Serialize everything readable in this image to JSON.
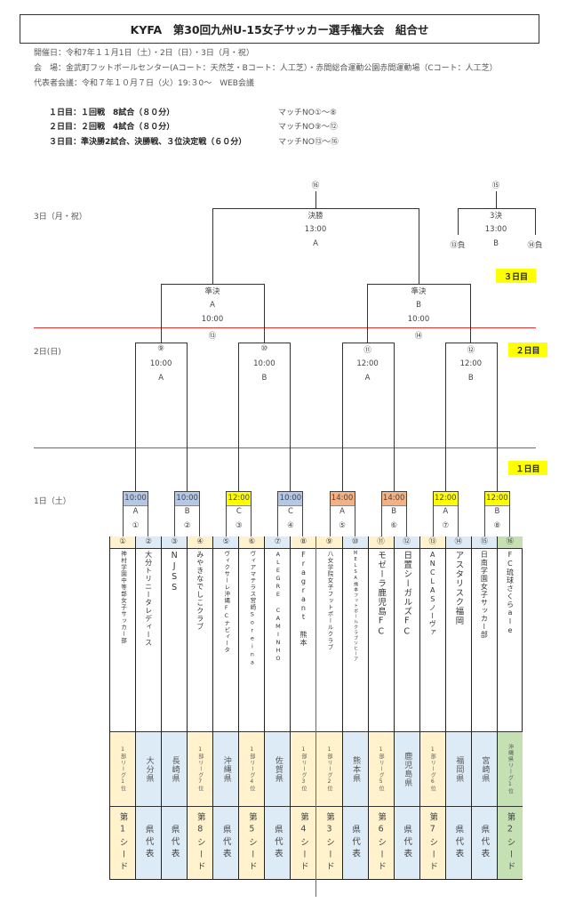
{
  "title": "KYFA　第30回九州U-15女子サッカー選手権大会　組合せ",
  "info": [
    "開催日：令和7年１１月1日（土）・2日（日）・3日（月・祝）",
    "会　場：金武町フットボールセンター(Aコート：天然芝・Bコート：人工芝）・赤間総合運動公園赤間運動場（Cコート：人工芝）",
    "代表者会議：令和７年１０月７日（火）19:３0～　WEB会議"
  ],
  "schedule": [
    {
      "day": "１日目：１回戦　8試合（８０分）",
      "matches": "マッチNO①～⑧"
    },
    {
      "day": "２日目：２回戦　4試合（８０分）",
      "matches": "マッチNO⑨～⑫"
    },
    {
      "day": "３日目：準決勝2試合、決勝戦、３位決定戦（６０分）",
      "matches": "マッチNO⑬～⑯"
    }
  ],
  "day_labels": {
    "day3": "3日（月・祝）",
    "day2": "2日(日)",
    "day1": "1日（土）"
  },
  "day_tags": {
    "day3": "３日目",
    "day2": "２日目",
    "day1": "１日目"
  },
  "colors": {
    "blue": "#b4c7e7",
    "yellow": "#ffff00",
    "orange": "#f4b183",
    "cell_orange": "#fff2cc",
    "cell_blue": "#ddebf7",
    "cell_green": "#c5e0b3",
    "red_line": "#e33333"
  },
  "final": {
    "no": "⑯",
    "name": "決勝",
    "time": "13:00",
    "court": "A"
  },
  "third_place": {
    "no": "⑮",
    "name": "3決",
    "time": "13:00",
    "court": "B",
    "left": "⑬負",
    "right": "⑭負"
  },
  "semifinals": [
    {
      "no": "⑬",
      "name": "準決",
      "court": "A",
      "time": "10:00"
    },
    {
      "no": "⑭",
      "name": "準決",
      "court": "B",
      "time": "10:00"
    }
  ],
  "round2": [
    {
      "no": "⑨",
      "time": "10:00",
      "court": "A"
    },
    {
      "no": "⑩",
      "time": "10:00",
      "court": "B"
    },
    {
      "no": "⑪",
      "time": "12:00",
      "court": "A"
    },
    {
      "no": "⑫",
      "time": "12:00",
      "court": "B"
    }
  ],
  "round1": [
    {
      "no": "①",
      "time": "10:00",
      "court": "A",
      "color": "blue"
    },
    {
      "no": "②",
      "time": "10:00",
      "court": "B",
      "color": "blue"
    },
    {
      "no": "③",
      "time": "12:00",
      "court": "C",
      "color": "yellow"
    },
    {
      "no": "④",
      "time": "10:00",
      "court": "C",
      "color": "blue"
    },
    {
      "no": "⑤",
      "time": "14:00",
      "court": "A",
      "color": "orange"
    },
    {
      "no": "⑥",
      "time": "14:00",
      "court": "B",
      "color": "orange"
    },
    {
      "no": "⑦",
      "time": "12:00",
      "court": "A",
      "color": "yellow"
    },
    {
      "no": "⑧",
      "time": "12:00",
      "court": "B",
      "color": "yellow"
    }
  ],
  "teams": [
    {
      "no": "①",
      "name": "神村学園中等部女子サッカー部",
      "qual": "1部リーグ1位",
      "seed": "第1シード",
      "tone": "orange"
    },
    {
      "no": "②",
      "name": "大分トリニータレディース",
      "qual": "大分県",
      "seed": "県代表",
      "tone": "blue"
    },
    {
      "no": "③",
      "name": "NJSS",
      "qual": "長崎県",
      "seed": "県代表",
      "tone": "blue"
    },
    {
      "no": "④",
      "name": "みやきなでしこクラブ",
      "qual": "1部リーグ7位",
      "seed": "第8シード",
      "tone": "orange"
    },
    {
      "no": "⑤",
      "name": "ヴィクサーレ沖縄FCナビィータ",
      "qual": "沖縄県",
      "seed": "県代表",
      "tone": "blue"
    },
    {
      "no": "⑥",
      "name": "ヴィアマテラス宮崎Soreina",
      "qual": "1部リーグ4位",
      "seed": "第5シード",
      "tone": "orange"
    },
    {
      "no": "⑦",
      "name": "ALEGRE CAMINHO",
      "qual": "佐賀県",
      "seed": "県代表",
      "tone": "blue"
    },
    {
      "no": "⑧",
      "name": "Fragrant 熊本",
      "qual": "1部リーグ3位",
      "seed": "第4シード",
      "tone": "orange"
    },
    {
      "no": "⑨",
      "name": "八女学院女子フットボールクラブ",
      "qual": "1部リーグ2位",
      "seed": "第3シード",
      "tone": "orange"
    },
    {
      "no": "⑩",
      "name": "MELSA熊本フットボールクラブソヒーア",
      "qual": "熊本県",
      "seed": "県代表",
      "tone": "blue"
    },
    {
      "no": "⑪",
      "name": "モゼーラ鹿児島FC",
      "qual": "1部リーグ5位",
      "seed": "第6シード",
      "tone": "orange"
    },
    {
      "no": "⑫",
      "name": "日置シーガルズFC",
      "qual": "鹿児島県",
      "seed": "県代表",
      "tone": "blue"
    },
    {
      "no": "⑬",
      "name": "ANCLASノーヴァ",
      "qual": "1部リーグ6位",
      "seed": "第7シード",
      "tone": "orange"
    },
    {
      "no": "⑭",
      "name": "アスタリスク福岡",
      "qual": "福岡県",
      "seed": "県代表",
      "tone": "blue"
    },
    {
      "no": "⑮",
      "name": "日南学園女子サッカー部",
      "qual": "宮崎県",
      "seed": "県代表",
      "tone": "blue"
    },
    {
      "no": "⑯",
      "name": "FC琉球さくらale",
      "qual": "沖縄県リーグ1位",
      "seed": "第2シード",
      "tone": "green"
    }
  ]
}
